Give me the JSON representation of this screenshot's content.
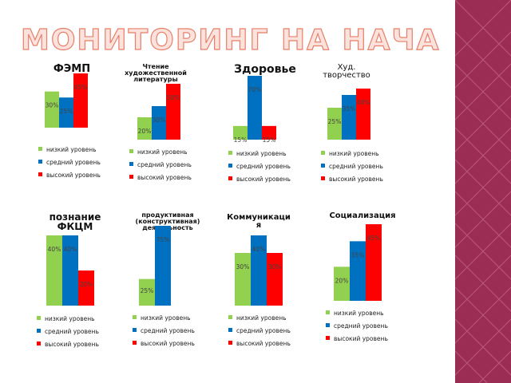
{
  "title": "МОНИТОРИНГ НА НАЧАЛО ГОДА",
  "colors": {
    "low": "#92d050",
    "mid": "#0070c0",
    "high": "#ff0000",
    "title_outline": "#e8806a",
    "deco": "#9b2d55"
  },
  "legend": [
    "низкий уровень",
    "средний уровень",
    "высокий уровень"
  ],
  "chart_data": [
    {
      "type": "bar",
      "title": "ФЭМП",
      "categories": [
        "низкий уровень",
        "средний уровень",
        "высокий уровень"
      ],
      "values": [
        30,
        25,
        45
      ],
      "labels": [
        "30%",
        "25%",
        "45%"
      ],
      "ylim": [
        0,
        45
      ]
    },
    {
      "type": "bar",
      "title": "Чтение художественной литературы",
      "categories": [
        "низкий уровень",
        "средний уровень",
        "высокий уровень"
      ],
      "values": [
        20,
        30,
        50
      ],
      "labels": [
        "20%",
        "30%",
        "50%"
      ],
      "ylim": [
        0,
        50
      ]
    },
    {
      "type": "bar",
      "title": "Здоровье",
      "categories": [
        "низкий уровень",
        "средний уровень",
        "высокий уровень"
      ],
      "values": [
        15,
        70,
        15
      ],
      "labels": [
        "15%",
        "70%",
        "15%"
      ],
      "ylim": [
        0,
        70
      ]
    },
    {
      "type": "bar",
      "title": "Худ. творчество",
      "categories": [
        "низкий уровень",
        "средний уровень",
        "высокий уровень"
      ],
      "values": [
        25,
        35,
        40
      ],
      "labels": [
        "25%",
        "35%",
        "40%"
      ],
      "ylim": [
        0,
        40
      ]
    },
    {
      "type": "bar",
      "title": "познание ФКЦМ",
      "categories": [
        "низкий уровень",
        "средний уровень",
        "высокий уровень"
      ],
      "values": [
        40,
        40,
        20
      ],
      "labels": [
        "40%",
        "40%",
        "20%"
      ],
      "ylim": [
        0,
        40
      ]
    },
    {
      "type": "bar",
      "title": "продуктивная (конструктивная) деятельность",
      "categories": [
        "низкий уровень",
        "средний уровень",
        "высокий уровень"
      ],
      "values": [
        25,
        75,
        0
      ],
      "labels": [
        "25%",
        "75%",
        ""
      ],
      "ylim": [
        0,
        75
      ]
    },
    {
      "type": "bar",
      "title": "Коммуникация",
      "categories": [
        "низкий уровень",
        "средний уровень",
        "высокий уровень"
      ],
      "values": [
        30,
        40,
        30
      ],
      "labels": [
        "30%",
        "40%",
        "30%"
      ],
      "ylim": [
        0,
        40
      ]
    },
    {
      "type": "bar",
      "title": "Социализация",
      "categories": [
        "низкий уровень",
        "средний уровень",
        "высокий уровень"
      ],
      "values": [
        20,
        35,
        45
      ],
      "labels": [
        "20%",
        "35%",
        "45%"
      ],
      "ylim": [
        0,
        45
      ]
    }
  ]
}
